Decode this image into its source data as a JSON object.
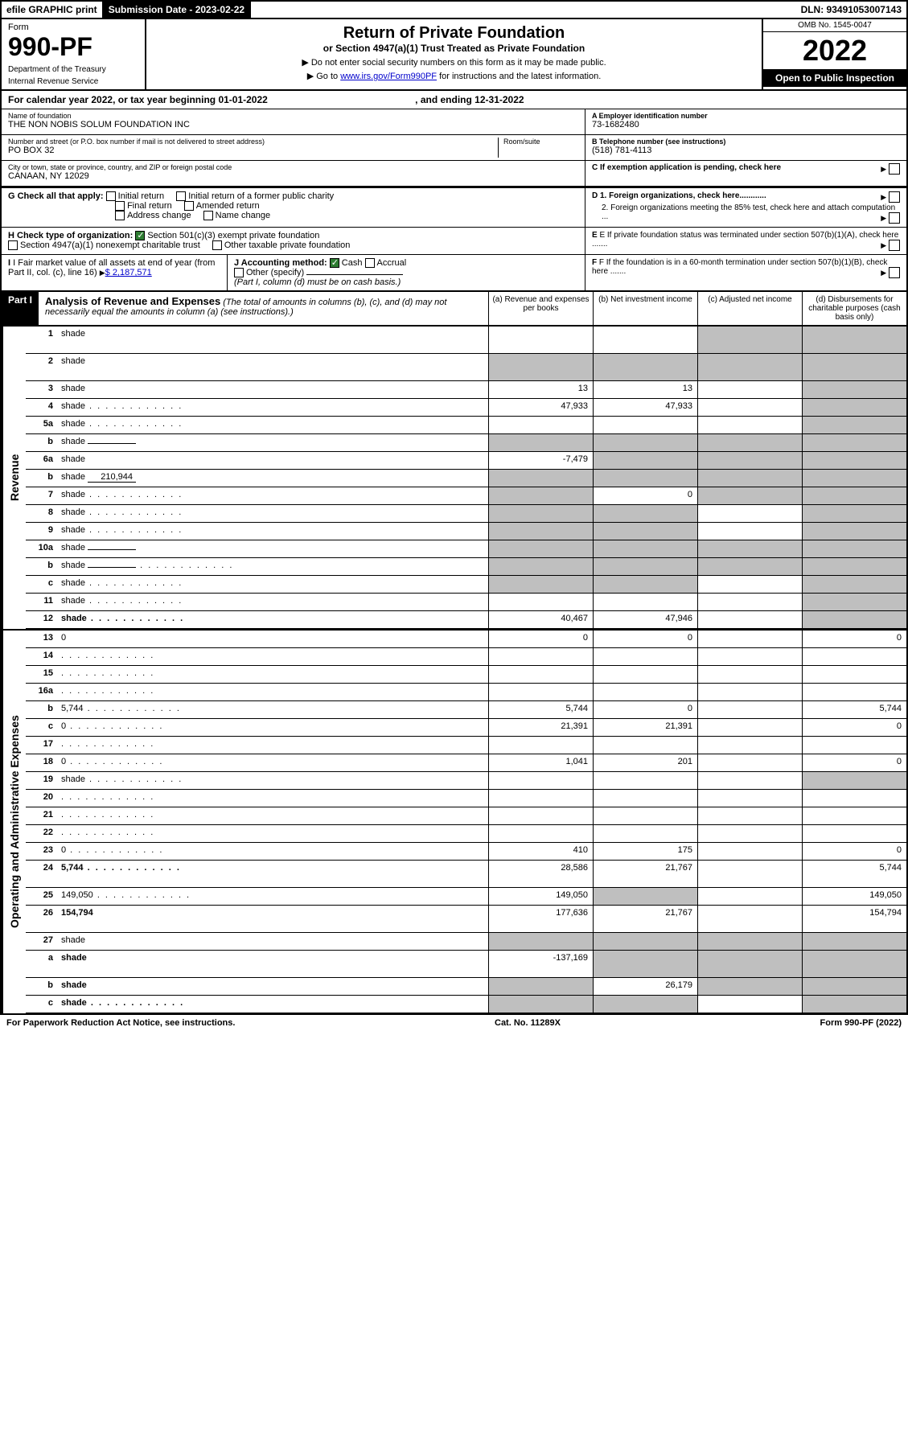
{
  "topbar": {
    "efile": "efile GRAPHIC print",
    "subdate_label": "Submission Date - 2023-02-22",
    "dln": "DLN: 93491053007143"
  },
  "header": {
    "form_label": "Form",
    "form_num": "990-PF",
    "dept": "Department of the Treasury",
    "irs": "Internal Revenue Service",
    "title": "Return of Private Foundation",
    "subtitle": "or Section 4947(a)(1) Trust Treated as Private Foundation",
    "inst1": "▶ Do not enter social security numbers on this form as it may be made public.",
    "inst2_pre": "▶ Go to ",
    "inst2_link": "www.irs.gov/Form990PF",
    "inst2_post": " for instructions and the latest information.",
    "omb": "OMB No. 1545-0047",
    "year": "2022",
    "open": "Open to Public Inspection"
  },
  "calyear": {
    "text": "For calendar year 2022, or tax year beginning 01-01-2022",
    "ending": ", and ending 12-31-2022"
  },
  "info": {
    "name_label": "Name of foundation",
    "name": "THE NON NOBIS SOLUM FOUNDATION INC",
    "addr_label": "Number and street (or P.O. box number if mail is not delivered to street address)",
    "addr": "PO BOX 32",
    "room_label": "Room/suite",
    "city_label": "City or town, state or province, country, and ZIP or foreign postal code",
    "city": "CANAAN, NY  12029",
    "ein_label": "A Employer identification number",
    "ein": "73-1682480",
    "tel_label": "B Telephone number (see instructions)",
    "tel": "(518) 781-4113",
    "c_label": "C If exemption application is pending, check here",
    "d1_label": "D 1. Foreign organizations, check here............",
    "d2_label": "2. Foreign organizations meeting the 85% test, check here and attach computation ...",
    "e_label": "E If private foundation status was terminated under section 507(b)(1)(A), check here .......",
    "f_label": "F If the foundation is in a 60-month termination under section 507(b)(1)(B), check here .......",
    "g_label": "G Check all that apply:",
    "g_opts": [
      "Initial return",
      "Initial return of a former public charity",
      "Final return",
      "Amended return",
      "Address change",
      "Name change"
    ],
    "h_label": "H Check type of organization:",
    "h_501": "Section 501(c)(3) exempt private foundation",
    "h_4947": "Section 4947(a)(1) nonexempt charitable trust",
    "h_other": "Other taxable private foundation",
    "i_label": "I Fair market value of all assets at end of year (from Part II, col. (c), line 16)",
    "i_val": "$  2,187,571",
    "j_label": "J Accounting method:",
    "j_cash": "Cash",
    "j_accrual": "Accrual",
    "j_other": "Other (specify)",
    "j_note": "(Part I, column (d) must be on cash basis.)"
  },
  "part1": {
    "label": "Part I",
    "title": "Analysis of Revenue and Expenses",
    "note": "(The total of amounts in columns (b), (c), and (d) may not necessarily equal the amounts in column (a) (see instructions).)",
    "cols": {
      "a": "(a)   Revenue and expenses per books",
      "b": "(b)   Net investment income",
      "c": "(c)   Adjusted net income",
      "d": "(d)   Disbursements for charitable purposes (cash basis only)"
    }
  },
  "sides": {
    "revenue": "Revenue",
    "expenses": "Operating and Administrative Expenses"
  },
  "lines": [
    {
      "n": "1",
      "d": "shade",
      "a": "",
      "b": "",
      "c": "shade",
      "tall": true
    },
    {
      "n": "2",
      "d": "shade",
      "a": "shade",
      "b": "shade",
      "c": "shade",
      "tall": true,
      "bold_parts": true
    },
    {
      "n": "3",
      "d": "shade",
      "a": "13",
      "b": "13",
      "c": ""
    },
    {
      "n": "4",
      "d": "shade",
      "a": "47,933",
      "b": "47,933",
      "c": "",
      "dots": true
    },
    {
      "n": "5a",
      "d": "shade",
      "a": "",
      "b": "",
      "c": "",
      "dots": true
    },
    {
      "n": "b",
      "d": "shade",
      "a": "shade",
      "b": "shade",
      "c": "shade",
      "inline": true
    },
    {
      "n": "6a",
      "d": "shade",
      "a": "-7,479",
      "b": "shade",
      "c": "shade"
    },
    {
      "n": "b",
      "d": "shade",
      "a": "shade",
      "b": "shade",
      "c": "shade",
      "inline": true,
      "inline_val": "210,944"
    },
    {
      "n": "7",
      "d": "shade",
      "a": "shade",
      "b": "0",
      "c": "shade",
      "dots": true
    },
    {
      "n": "8",
      "d": "shade",
      "a": "shade",
      "b": "shade",
      "c": "",
      "dots": true
    },
    {
      "n": "9",
      "d": "shade",
      "a": "shade",
      "b": "shade",
      "c": "",
      "dots": true
    },
    {
      "n": "10a",
      "d": "shade",
      "a": "shade",
      "b": "shade",
      "c": "shade",
      "inline": true
    },
    {
      "n": "b",
      "d": "shade",
      "a": "shade",
      "b": "shade",
      "c": "shade",
      "inline": true,
      "dots": true
    },
    {
      "n": "c",
      "d": "shade",
      "a": "shade",
      "b": "shade",
      "c": "",
      "dots": true
    },
    {
      "n": "11",
      "d": "shade",
      "a": "",
      "b": "",
      "c": "",
      "dots": true
    },
    {
      "n": "12",
      "d": "shade",
      "a": "40,467",
      "b": "47,946",
      "c": "",
      "bold": true,
      "dots": true
    }
  ],
  "exp_lines": [
    {
      "n": "13",
      "d": "0",
      "a": "0",
      "b": "0",
      "c": ""
    },
    {
      "n": "14",
      "d": "",
      "a": "",
      "b": "",
      "c": "",
      "dots": true
    },
    {
      "n": "15",
      "d": "",
      "a": "",
      "b": "",
      "c": "",
      "dots": true
    },
    {
      "n": "16a",
      "d": "",
      "a": "",
      "b": "",
      "c": "",
      "dots": true
    },
    {
      "n": "b",
      "d": "5,744",
      "a": "5,744",
      "b": "0",
      "c": "",
      "dots": true
    },
    {
      "n": "c",
      "d": "0",
      "a": "21,391",
      "b": "21,391",
      "c": "",
      "dots": true
    },
    {
      "n": "17",
      "d": "",
      "a": "",
      "b": "",
      "c": "",
      "dots": true
    },
    {
      "n": "18",
      "d": "0",
      "a": "1,041",
      "b": "201",
      "c": "",
      "dots": true
    },
    {
      "n": "19",
      "d": "shade",
      "a": "",
      "b": "",
      "c": "",
      "dots": true
    },
    {
      "n": "20",
      "d": "",
      "a": "",
      "b": "",
      "c": "",
      "dots": true
    },
    {
      "n": "21",
      "d": "",
      "a": "",
      "b": "",
      "c": "",
      "dots": true
    },
    {
      "n": "22",
      "d": "",
      "a": "",
      "b": "",
      "c": "",
      "dots": true
    },
    {
      "n": "23",
      "d": "0",
      "a": "410",
      "b": "175",
      "c": "",
      "dots": true
    },
    {
      "n": "24",
      "d": "5,744",
      "a": "28,586",
      "b": "21,767",
      "c": "",
      "bold": true,
      "tall": true,
      "dots": true
    },
    {
      "n": "25",
      "d": "149,050",
      "a": "149,050",
      "b": "shade",
      "c": "",
      "dots": true
    },
    {
      "n": "26",
      "d": "154,794",
      "a": "177,636",
      "b": "21,767",
      "c": "",
      "bold": true,
      "tall": true
    },
    {
      "n": "27",
      "d": "shade",
      "a": "shade",
      "b": "shade",
      "c": "shade"
    },
    {
      "n": "a",
      "d": "shade",
      "a": "-137,169",
      "b": "shade",
      "c": "shade",
      "bold": true,
      "tall": true
    },
    {
      "n": "b",
      "d": "shade",
      "a": "shade",
      "b": "26,179",
      "c": "shade",
      "bold": true
    },
    {
      "n": "c",
      "d": "shade",
      "a": "shade",
      "b": "shade",
      "c": "",
      "bold": true,
      "dots": true
    }
  ],
  "footer": {
    "left": "For Paperwork Reduction Act Notice, see instructions.",
    "center": "Cat. No. 11289X",
    "right": "Form 990-PF (2022)"
  }
}
